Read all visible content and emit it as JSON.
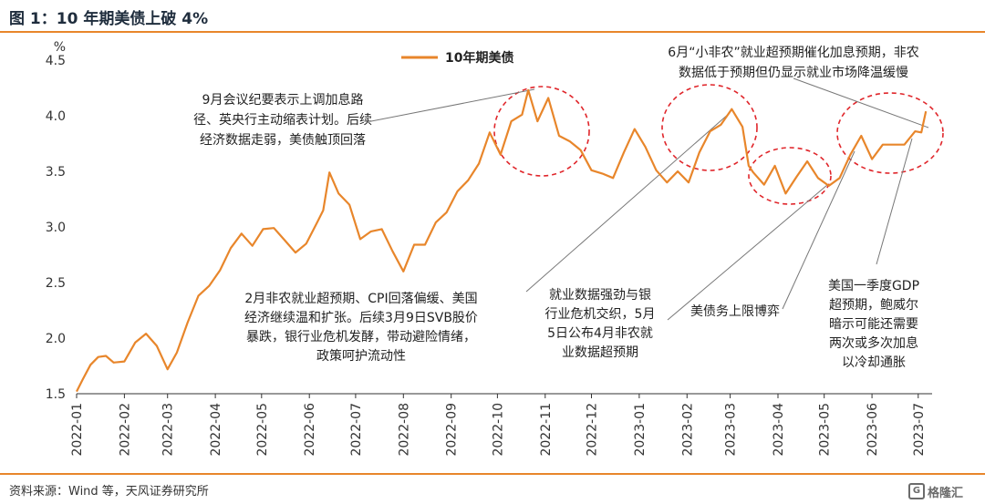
{
  "figure": {
    "title": "图 1：10 年期美债上破 4%",
    "source": "资料来源：Wind 等，天风证券研究所",
    "watermark": "格隆汇"
  },
  "chart_data": {
    "type": "line",
    "title": "",
    "ylabel": "%",
    "ylim": [
      1.5,
      4.5
    ],
    "yticks": [
      "1.5",
      "2.0",
      "2.5",
      "3.0",
      "3.5",
      "4.0",
      "4.5"
    ],
    "xticks": [
      "2022-01",
      "2022-02",
      "2022-03",
      "2022-04",
      "2022-05",
      "2022-06",
      "2022-07",
      "2022-08",
      "2022-09",
      "2022-10",
      "2022-11",
      "2022-12",
      "2023-01",
      "2023-02",
      "2023-03",
      "2023-04",
      "2023-05",
      "2023-06",
      "2023-07"
    ],
    "xlim": [
      "2022-01-01",
      "2023-07-10"
    ],
    "legend": {
      "position": "top-center"
    },
    "line_color": "#e8862b",
    "highlight_color": "#e0262b",
    "series": [
      {
        "name": "10年期美债",
        "x": [
          "2022-01-01",
          "2022-01-05",
          "2022-01-10",
          "2022-01-15",
          "2022-01-20",
          "2022-01-25",
          "2022-02-01",
          "2022-02-08",
          "2022-02-15",
          "2022-02-22",
          "2022-03-01",
          "2022-03-07",
          "2022-03-14",
          "2022-03-21",
          "2022-03-28",
          "2022-04-04",
          "2022-04-11",
          "2022-04-18",
          "2022-04-25",
          "2022-05-02",
          "2022-05-09",
          "2022-05-16",
          "2022-05-23",
          "2022-05-30",
          "2022-06-06",
          "2022-06-10",
          "2022-06-14",
          "2022-06-20",
          "2022-06-27",
          "2022-07-04",
          "2022-07-11",
          "2022-07-18",
          "2022-07-25",
          "2022-08-01",
          "2022-08-08",
          "2022-08-15",
          "2022-08-22",
          "2022-08-29",
          "2022-09-05",
          "2022-09-12",
          "2022-09-19",
          "2022-09-26",
          "2022-10-03",
          "2022-10-10",
          "2022-10-17",
          "2022-10-21",
          "2022-10-27",
          "2022-11-03",
          "2022-11-10",
          "2022-11-17",
          "2022-11-24",
          "2022-12-01",
          "2022-12-08",
          "2022-12-15",
          "2022-12-22",
          "2022-12-29",
          "2023-01-05",
          "2023-01-12",
          "2023-01-19",
          "2023-01-26",
          "2023-02-02",
          "2023-02-09",
          "2023-02-16",
          "2023-02-23",
          "2023-03-02",
          "2023-03-09",
          "2023-03-13",
          "2023-03-16",
          "2023-03-23",
          "2023-03-30",
          "2023-04-06",
          "2023-04-13",
          "2023-04-20",
          "2023-04-27",
          "2023-05-04",
          "2023-05-11",
          "2023-05-18",
          "2023-05-25",
          "2023-06-01",
          "2023-06-08",
          "2023-06-15",
          "2023-06-22",
          "2023-06-29",
          "2023-07-03",
          "2023-07-06"
        ],
        "values": [
          1.52,
          1.63,
          1.76,
          1.83,
          1.84,
          1.78,
          1.79,
          1.96,
          2.04,
          1.93,
          1.72,
          1.87,
          2.14,
          2.38,
          2.47,
          2.61,
          2.81,
          2.94,
          2.83,
          2.98,
          2.99,
          2.88,
          2.77,
          2.85,
          3.04,
          3.15,
          3.49,
          3.3,
          3.2,
          2.89,
          2.96,
          2.98,
          2.78,
          2.6,
          2.84,
          2.84,
          3.04,
          3.13,
          3.32,
          3.42,
          3.57,
          3.85,
          3.65,
          3.95,
          4.01,
          4.23,
          3.95,
          4.16,
          3.82,
          3.77,
          3.69,
          3.51,
          3.48,
          3.44,
          3.67,
          3.88,
          3.72,
          3.51,
          3.4,
          3.5,
          3.4,
          3.67,
          3.86,
          3.92,
          4.06,
          3.9,
          3.55,
          3.49,
          3.38,
          3.55,
          3.3,
          3.45,
          3.59,
          3.44,
          3.37,
          3.44,
          3.65,
          3.82,
          3.61,
          3.74,
          3.74,
          3.74,
          3.86,
          3.85,
          4.04
        ]
      }
    ],
    "annotations": [
      {
        "lines": [
          "9月会议纪要表示上调加息路",
          "径、英央行主动缩表计划。后续",
          "经济数据走弱，美债触顶回落"
        ]
      },
      {
        "lines": [
          "6月“小非农”就业超预期催化加息预期，非农",
          "数据低于预期但仍显示就业市场降温缓慢"
        ]
      },
      {
        "lines": [
          "2月非农就业超预期、CPI回落偏缓、美国",
          "经济继续温和扩张。后续3月9日SVB股价",
          "暴跌，银行业危机发酵，带动避险情绪，",
          "政策呵护流动性"
        ]
      },
      {
        "lines": [
          "就业数据强劲与银",
          "行业危机交织，5月",
          "5日公布4月非农就",
          "业数据超预期"
        ]
      },
      {
        "lines": [
          "美债务上限博弈"
        ]
      },
      {
        "lines": [
          "美国一季度GDP",
          "超预期，鲍威尔",
          "暗示可能还需要",
          "两次或多次加息",
          "以冷却通胀"
        ]
      }
    ]
  }
}
